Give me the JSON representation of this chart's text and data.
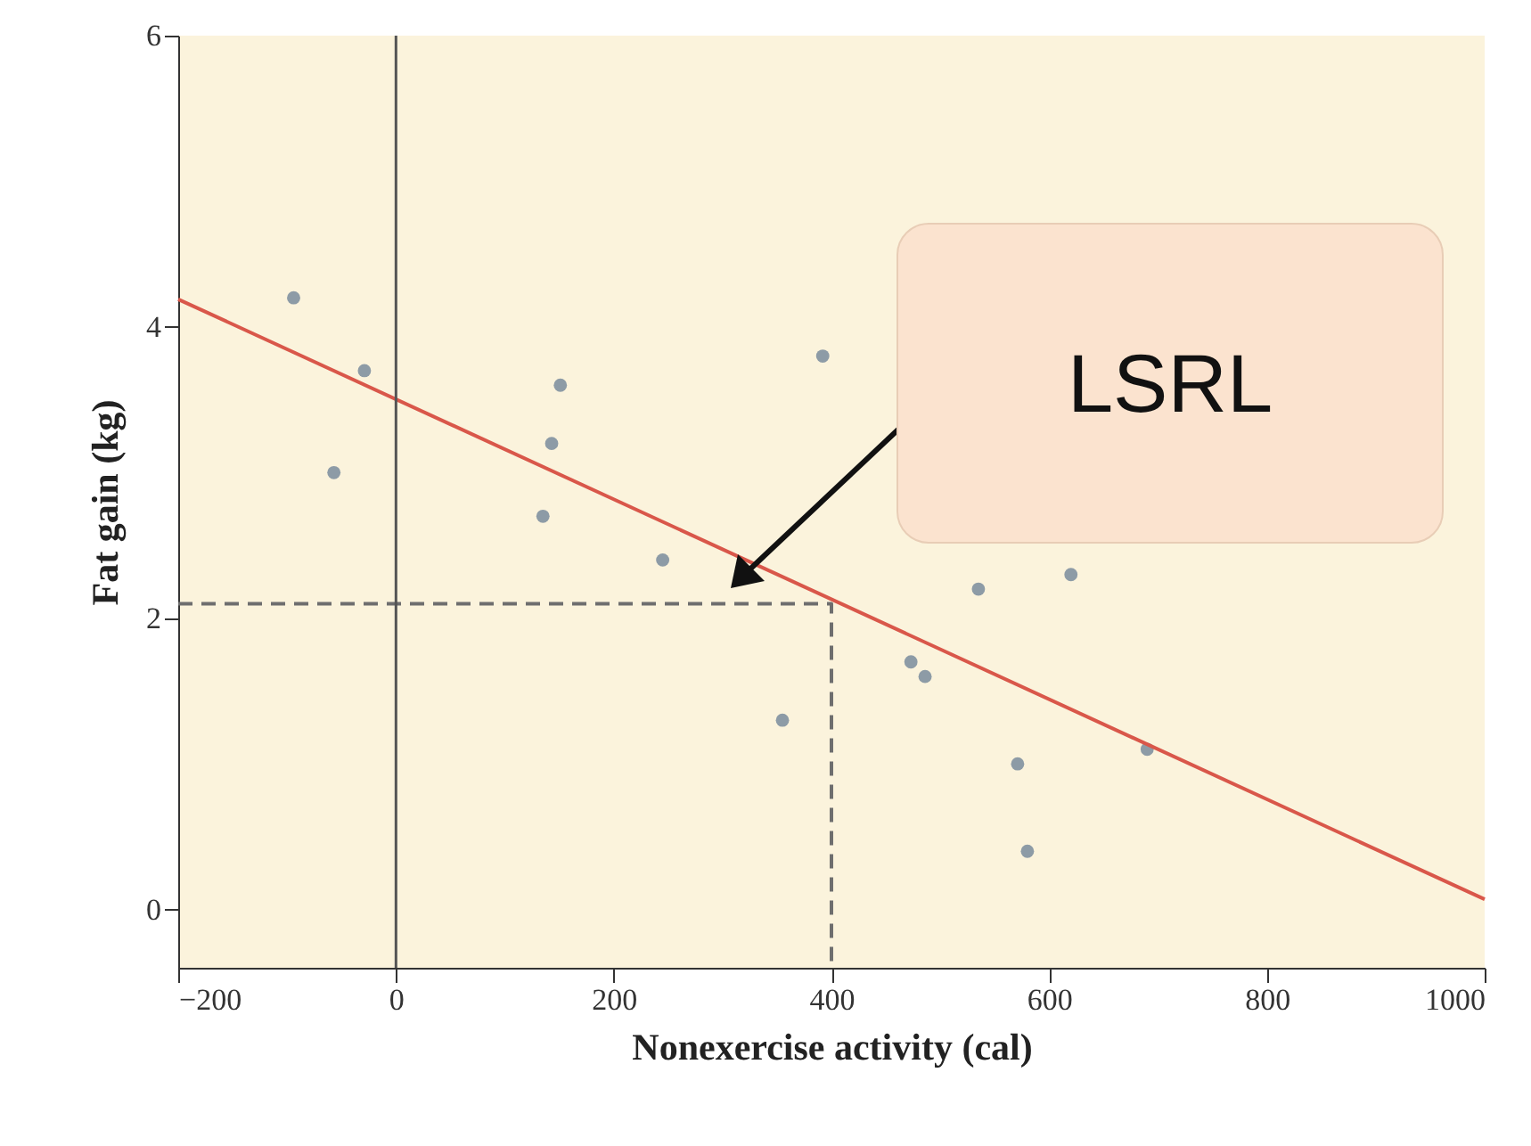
{
  "chart_data": {
    "type": "scatter",
    "xlabel": "Nonexercise activity (cal)",
    "ylabel": "Fat gain (kg)",
    "xlim": [
      -200,
      1000
    ],
    "ylim": [
      -0.4,
      6
    ],
    "xticks": [
      {
        "value": -200,
        "label": "−200"
      },
      0,
      200,
      400,
      600,
      800,
      1000
    ],
    "yticks": [
      0,
      2,
      4,
      6
    ],
    "grid": false,
    "series": [
      {
        "type": "scatter",
        "marker": "circle",
        "color": "#8d9ba6",
        "x": [
          -94,
          -57,
          -29,
          135,
          143,
          151,
          245,
          355,
          392,
          473,
          486,
          535,
          571,
          580,
          620,
          690
        ],
        "values": [
          4.2,
          3.0,
          3.7,
          2.7,
          3.2,
          3.6,
          2.4,
          1.3,
          3.8,
          1.7,
          1.6,
          2.2,
          1.0,
          0.4,
          2.3,
          1.1
        ]
      },
      {
        "type": "line",
        "color": "#d9574a",
        "line_style": "solid",
        "x": [
          -200,
          1000
        ],
        "values": [
          4.19,
          0.07
        ]
      },
      {
        "type": "line",
        "color": "#6e6e6e",
        "line_style": "dashed",
        "x": [
          -200,
          400,
          400
        ],
        "values": [
          2.1,
          2.1,
          -0.4
        ]
      }
    ],
    "ref_lines": [
      {
        "axis": "x",
        "value": 0,
        "color": "#555555"
      }
    ],
    "annotations": [
      "LSRL"
    ]
  }
}
